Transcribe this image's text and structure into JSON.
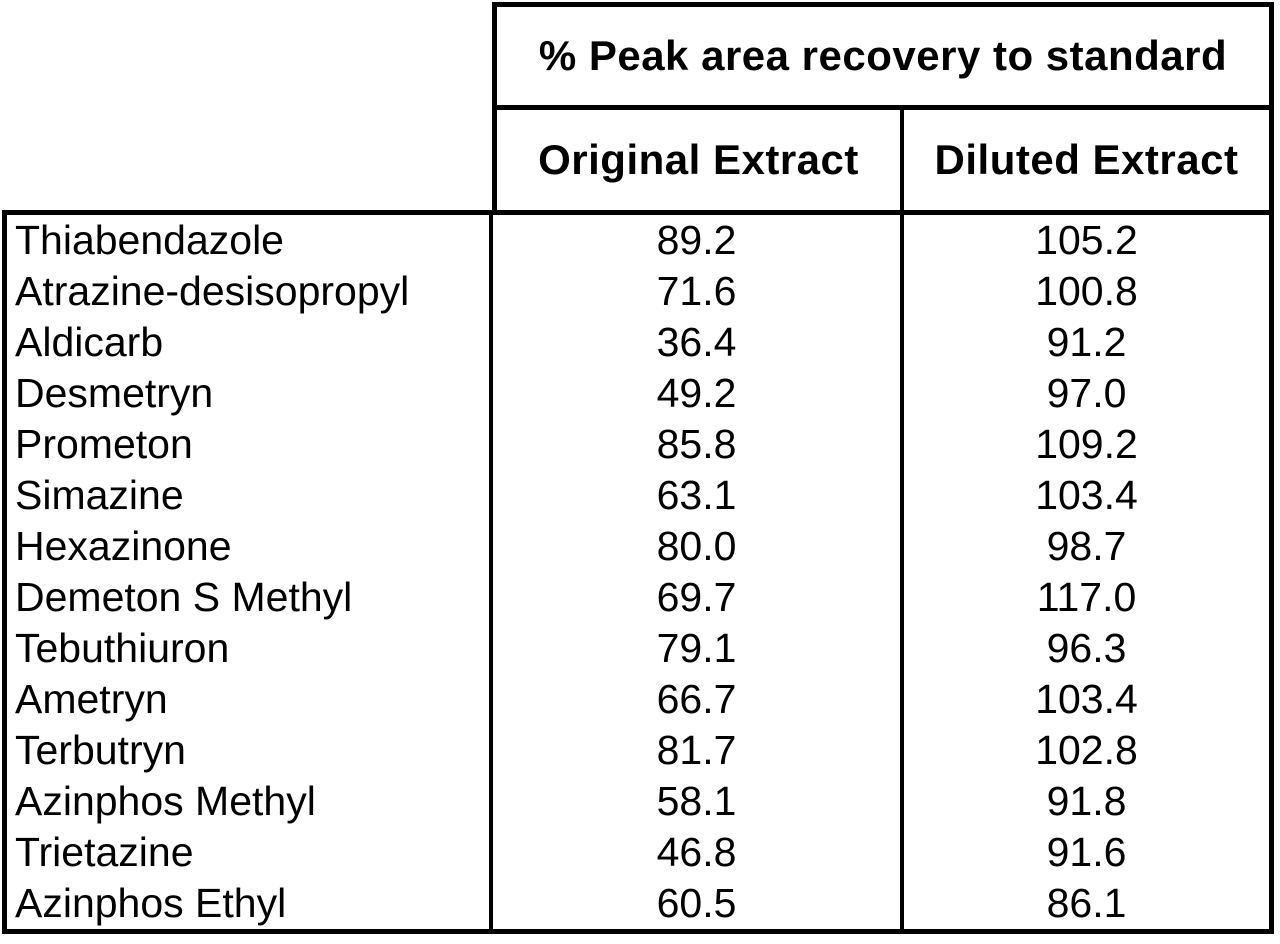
{
  "table": {
    "title": "% Peak area recovery to standard",
    "column_headers": {
      "original": "Original Extract",
      "diluted": "Diluted Extract"
    },
    "rows": [
      {
        "name": "Thiabendazole",
        "original": "89.2",
        "diluted": "105.2"
      },
      {
        "name": "Atrazine-desisopropyl",
        "original": "71.6",
        "diluted": "100.8"
      },
      {
        "name": "Aldicarb",
        "original": "36.4",
        "diluted": "91.2"
      },
      {
        "name": "Desmetryn",
        "original": "49.2",
        "diluted": "97.0"
      },
      {
        "name": "Prometon",
        "original": "85.8",
        "diluted": "109.2"
      },
      {
        "name": "Simazine",
        "original": "63.1",
        "diluted": "103.4"
      },
      {
        "name": "Hexazinone",
        "original": "80.0",
        "diluted": "98.7"
      },
      {
        "name": "Demeton S Methyl",
        "original": "69.7",
        "diluted": "117.0"
      },
      {
        "name": "Tebuthiuron",
        "original": "79.1",
        "diluted": "96.3"
      },
      {
        "name": "Ametryn",
        "original": "66.7",
        "diluted": "103.4"
      },
      {
        "name": "Terbutryn",
        "original": "81.7",
        "diluted": "102.8"
      },
      {
        "name": "Azinphos Methyl",
        "original": "58.1",
        "diluted": "91.8"
      },
      {
        "name": "Trietazine",
        "original": "46.8",
        "diluted": "91.6"
      },
      {
        "name": "Azinphos Ethyl",
        "original": "60.5",
        "diluted": "86.1"
      }
    ],
    "colors": {
      "border": "#000000",
      "text": "#000000",
      "background": "#ffffff"
    }
  },
  "chart_data": {
    "type": "table",
    "title": "% Peak area recovery to standard",
    "categories": [
      "Thiabendazole",
      "Atrazine-desisopropyl",
      "Aldicarb",
      "Desmetryn",
      "Prometon",
      "Simazine",
      "Hexazinone",
      "Demeton S Methyl",
      "Tebuthiuron",
      "Ametryn",
      "Terbutryn",
      "Azinphos Methyl",
      "Trietazine",
      "Azinphos Ethyl"
    ],
    "series": [
      {
        "name": "Original Extract",
        "values": [
          89.2,
          71.6,
          36.4,
          49.2,
          85.8,
          63.1,
          80.0,
          69.7,
          79.1,
          66.7,
          81.7,
          58.1,
          46.8,
          60.5
        ]
      },
      {
        "name": "Diluted Extract",
        "values": [
          105.2,
          100.8,
          91.2,
          97.0,
          109.2,
          103.4,
          98.7,
          117.0,
          96.3,
          103.4,
          102.8,
          91.8,
          91.6,
          86.1
        ]
      }
    ]
  }
}
